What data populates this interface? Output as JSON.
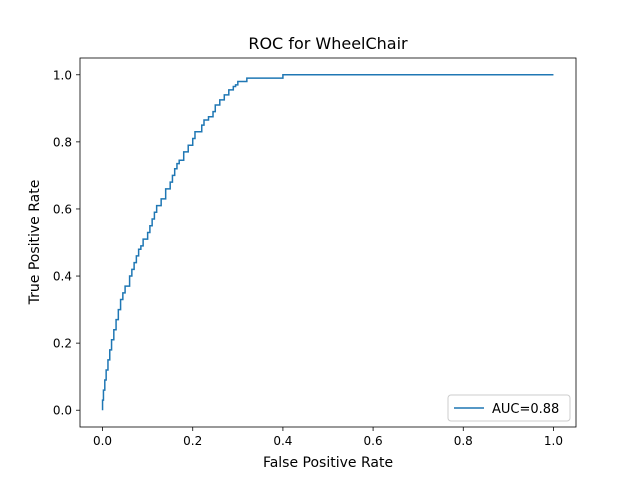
{
  "chart_data": {
    "type": "line",
    "title": "ROC for WheelChair",
    "xlabel": "False Positive Rate",
    "ylabel": "True Positive Rate",
    "xlim": [
      -0.05,
      1.05
    ],
    "ylim": [
      -0.05,
      1.05
    ],
    "xticks": [
      0.0,
      0.2,
      0.4,
      0.6,
      0.8,
      1.0
    ],
    "xtick_labels": [
      "0.0",
      "0.2",
      "0.4",
      "0.6",
      "0.8",
      "1.0"
    ],
    "yticks": [
      0.0,
      0.2,
      0.4,
      0.6,
      0.8,
      1.0
    ],
    "ytick_labels": [
      "0.0",
      "0.2",
      "0.4",
      "0.6",
      "0.8",
      "1.0"
    ],
    "grid": false,
    "legend": {
      "position": "lower-right"
    },
    "series": [
      {
        "name": "AUC=0.88",
        "color": "#1f77b4",
        "x": [
          0.0,
          0.0,
          0.002,
          0.002,
          0.005,
          0.005,
          0.008,
          0.008,
          0.012,
          0.012,
          0.016,
          0.016,
          0.02,
          0.02,
          0.025,
          0.025,
          0.03,
          0.03,
          0.035,
          0.035,
          0.04,
          0.04,
          0.045,
          0.045,
          0.05,
          0.05,
          0.06,
          0.06,
          0.065,
          0.065,
          0.07,
          0.07,
          0.075,
          0.075,
          0.08,
          0.08,
          0.085,
          0.085,
          0.09,
          0.09,
          0.1,
          0.1,
          0.105,
          0.105,
          0.11,
          0.11,
          0.115,
          0.115,
          0.12,
          0.12,
          0.13,
          0.13,
          0.14,
          0.14,
          0.15,
          0.15,
          0.155,
          0.155,
          0.16,
          0.16,
          0.165,
          0.165,
          0.17,
          0.17,
          0.18,
          0.18,
          0.19,
          0.19,
          0.2,
          0.2,
          0.205,
          0.205,
          0.22,
          0.22,
          0.225,
          0.225,
          0.235,
          0.235,
          0.245,
          0.245,
          0.25,
          0.25,
          0.26,
          0.26,
          0.27,
          0.27,
          0.28,
          0.28,
          0.29,
          0.29,
          0.295,
          0.295,
          0.3,
          0.3,
          0.32,
          0.32,
          0.33,
          0.33,
          0.4,
          0.4,
          1.0
        ],
        "y": [
          0.0,
          0.03,
          0.03,
          0.06,
          0.06,
          0.09,
          0.09,
          0.12,
          0.12,
          0.15,
          0.15,
          0.18,
          0.18,
          0.21,
          0.21,
          0.24,
          0.24,
          0.27,
          0.27,
          0.3,
          0.3,
          0.33,
          0.33,
          0.35,
          0.35,
          0.37,
          0.37,
          0.4,
          0.4,
          0.42,
          0.42,
          0.44,
          0.44,
          0.46,
          0.46,
          0.48,
          0.48,
          0.49,
          0.49,
          0.51,
          0.51,
          0.53,
          0.53,
          0.55,
          0.55,
          0.57,
          0.57,
          0.59,
          0.59,
          0.61,
          0.61,
          0.63,
          0.63,
          0.66,
          0.66,
          0.68,
          0.68,
          0.7,
          0.7,
          0.72,
          0.72,
          0.735,
          0.735,
          0.745,
          0.745,
          0.77,
          0.77,
          0.79,
          0.79,
          0.81,
          0.81,
          0.83,
          0.83,
          0.85,
          0.85,
          0.865,
          0.865,
          0.875,
          0.875,
          0.89,
          0.89,
          0.91,
          0.91,
          0.925,
          0.925,
          0.94,
          0.94,
          0.955,
          0.955,
          0.965,
          0.965,
          0.97,
          0.97,
          0.98,
          0.98,
          0.99,
          0.99,
          0.99,
          0.99,
          1.0,
          1.0
        ]
      }
    ]
  }
}
